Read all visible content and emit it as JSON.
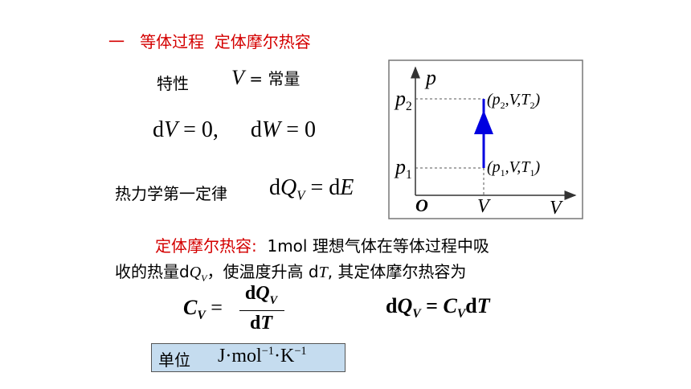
{
  "heading": {
    "number": "一",
    "title": "等体过程",
    "subtitle": "定体摩尔热容"
  },
  "property": {
    "label": "特性",
    "formula": [
      "V",
      " = 常量"
    ]
  },
  "differentials": [
    "d",
    "V",
    " = 0,",
    "d",
    "W",
    " = 0"
  ],
  "first_law": {
    "label": "热力学第一定律",
    "formula": [
      "d",
      "Q",
      "V",
      " = d",
      "E"
    ]
  },
  "diagram": {
    "y_axis": "p",
    "x_axis": "V",
    "origin": "O",
    "v_tick": "V",
    "p2": [
      "p",
      "2"
    ],
    "p1": [
      "p",
      "1"
    ],
    "state2": [
      "(p",
      "2",
      ",V,T",
      "2",
      ")"
    ],
    "state1": [
      "(p",
      "1",
      ",V,T",
      "1",
      ")"
    ]
  },
  "definition": {
    "term": "定体摩尔热容:",
    "line1": "1mol 理想气体在等体过程中吸",
    "line2": [
      "收的热量d",
      "Q",
      "V",
      "，使温度升高 d",
      "T",
      ", 其定体摩尔热容为"
    ]
  },
  "cv_formula": {
    "lhs": [
      "C",
      "V",
      " ="
    ],
    "numerator": [
      "d",
      "Q",
      "V"
    ],
    "denominator": [
      "d",
      "T"
    ]
  },
  "relation": [
    "d",
    "Q",
    "V",
    " = ",
    "C",
    "V",
    "d",
    "T"
  ],
  "unit": {
    "label": "单位",
    "value": [
      "J·mol",
      "−1",
      "·K",
      "−1"
    ]
  }
}
